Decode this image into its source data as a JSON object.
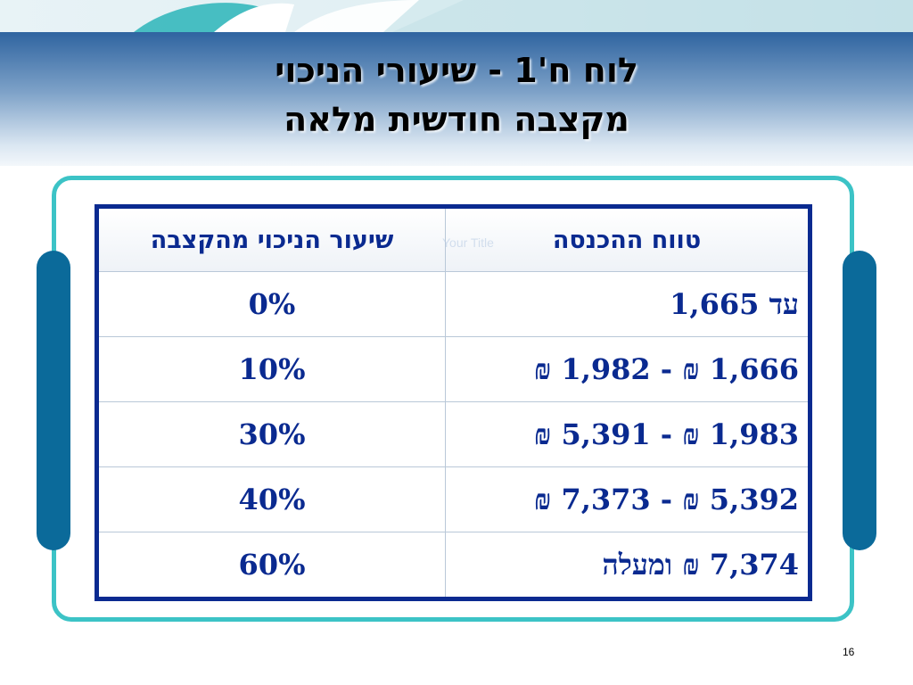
{
  "title": {
    "line1": "לוח ח'1 - שיעורי הניכוי",
    "line2": "מקצבה חודשית מלאה"
  },
  "watermark": "Your Title",
  "table": {
    "headers": {
      "range": "טווח ההכנסה",
      "rate": "שיעור הניכוי מהקצבה"
    },
    "rows": [
      {
        "range": "עד 1,665",
        "rate": "0%"
      },
      {
        "range": "1,666 ₪ - 1,982 ₪",
        "rate": "10%"
      },
      {
        "range": "1,983 ₪ - 5,391 ₪",
        "rate": "30%"
      },
      {
        "range": "5,392 ₪ - 7,373 ₪",
        "rate": "40%"
      },
      {
        "range": "7,374 ₪ ומעלה",
        "rate": "60%"
      }
    ]
  },
  "slide_number": "16",
  "colors": {
    "table_text": "#0a2a90",
    "frame_border": "#3cc3c6",
    "side_bars": "#0b6a9a",
    "header_band_top": "#2f64a0"
  }
}
